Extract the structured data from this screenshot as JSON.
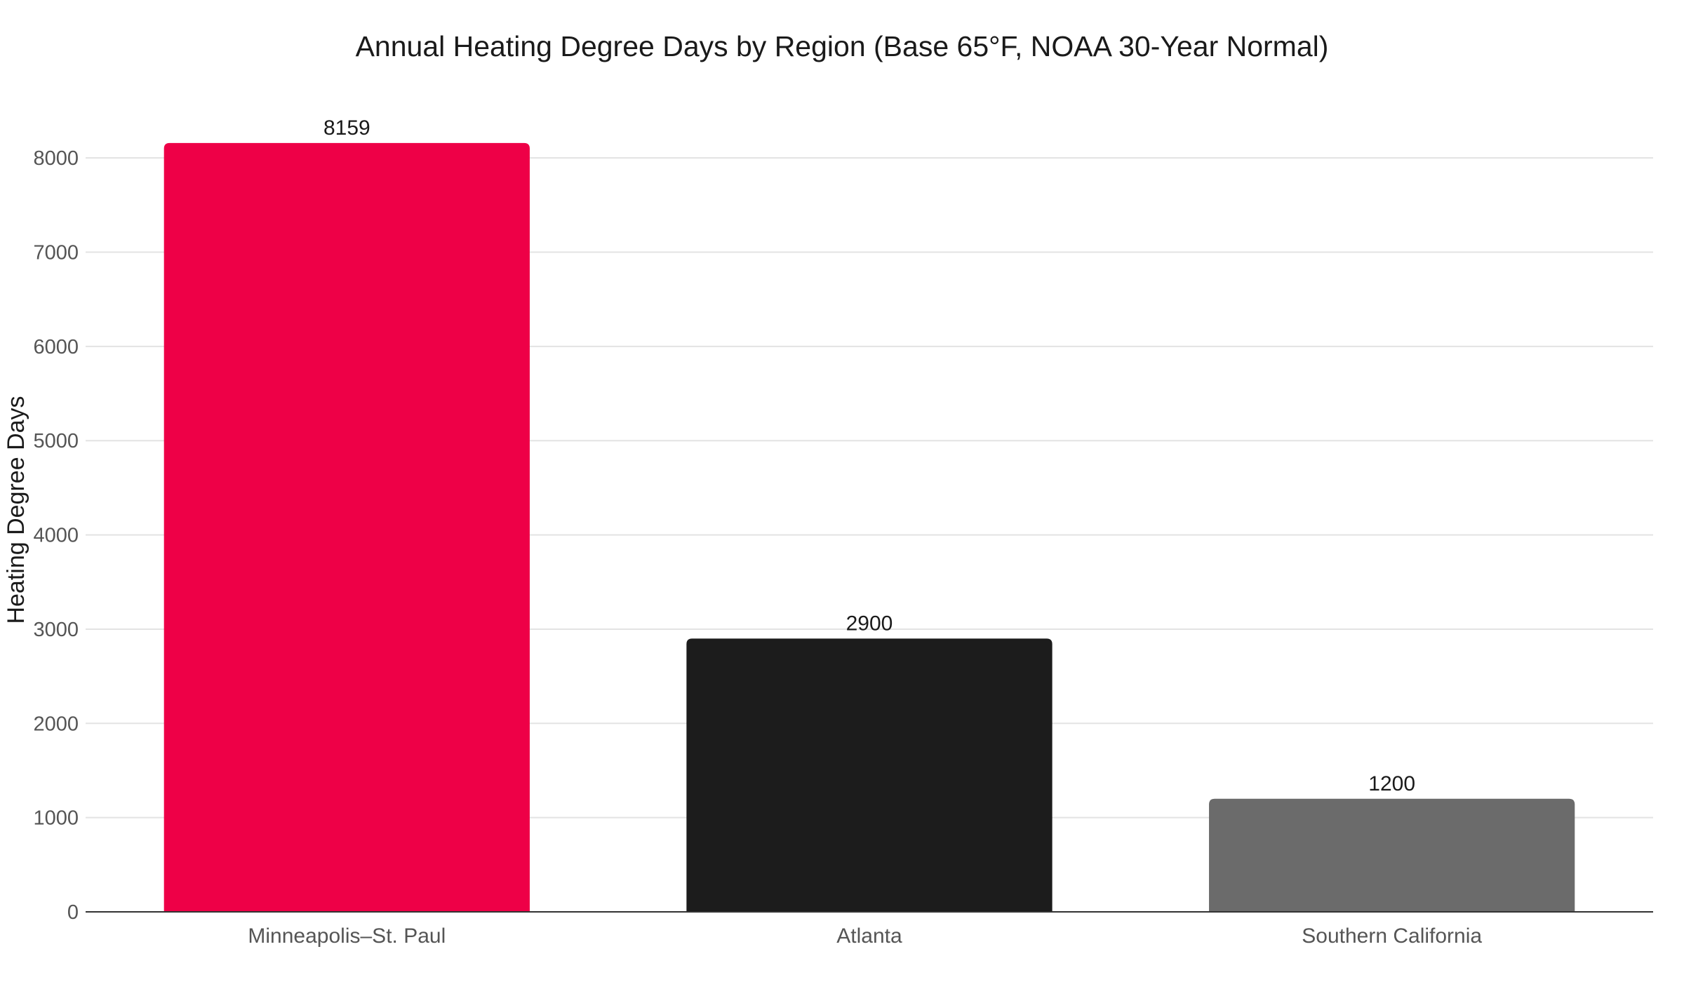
{
  "chart_data": {
    "type": "bar",
    "title": "Annual Heating Degree Days by Region (Base 65°F, NOAA 30-Year Normal)",
    "xlabel": "",
    "ylabel": "Heating Degree Days",
    "categories": [
      "Minneapolis–St. Paul",
      "Atlanta",
      "Southern California"
    ],
    "values": [
      8159,
      2900,
      1200
    ],
    "data_labels": [
      "8159",
      "2900",
      "1200"
    ],
    "colors": [
      "#EE0047",
      "#1C1C1C",
      "#6B6B6B"
    ],
    "ylim": [
      0,
      8500
    ],
    "yticks": [
      0,
      1000,
      2000,
      3000,
      4000,
      5000,
      6000,
      7000,
      8000
    ],
    "grid": true,
    "legend": "none"
  }
}
